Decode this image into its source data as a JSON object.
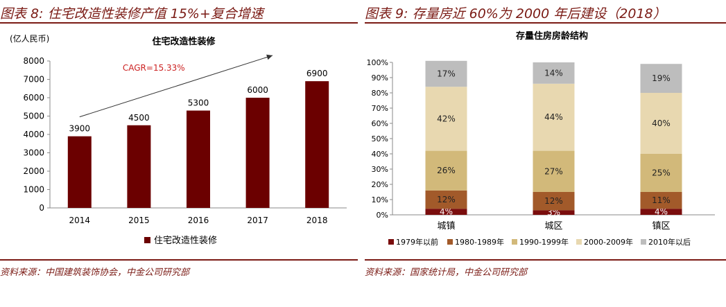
{
  "left_panel": {
    "figure_title": "图表 8: 住宅改造性装修产值 15%+复合增速",
    "source": "资料来源：中国建筑装饰协会，中金公司研究部"
  },
  "right_panel": {
    "figure_title": "图表 9: 存量房近 60%为 2000 年后建设（2018）",
    "source": "资料来源：国家统计局，中金公司研究部"
  },
  "colors": {
    "accent": "#7a1a14",
    "bar": "#6b0000",
    "cagr": "#cc2222",
    "stack": [
      "#7a0d0d",
      "#a25a2a",
      "#d2b97a",
      "#e8d8b0",
      "#bdbdbd"
    ]
  },
  "chart_data": [
    {
      "type": "bar",
      "title": "住宅改造性装修",
      "unit_label": "(亿人民币)",
      "categories": [
        "2014",
        "2015",
        "2016",
        "2017",
        "2018"
      ],
      "series": [
        {
          "name": "住宅改造性装修",
          "values": [
            3900,
            4500,
            5300,
            6000,
            6900
          ]
        }
      ],
      "ylim": [
        0,
        8000
      ],
      "yticks": [
        "0",
        "1000",
        "2000",
        "3000",
        "4000",
        "5000",
        "6000",
        "7000",
        "8000"
      ],
      "annotation": "CAGR=15.33%",
      "grid": false,
      "legend_position": "bottom"
    },
    {
      "type": "bar",
      "stacked": true,
      "title": "存量住房房龄结构",
      "categories": [
        "城镇",
        "城区",
        "镇区"
      ],
      "series": [
        {
          "name": "1979年以前",
          "values": [
            4,
            3,
            4
          ],
          "labels": [
            "4%",
            "3%",
            "4%"
          ]
        },
        {
          "name": "1980-1989年",
          "values": [
            12,
            12,
            11
          ],
          "labels": [
            "12%",
            "12%",
            "11%"
          ]
        },
        {
          "name": "1990-1999年",
          "values": [
            26,
            27,
            25
          ],
          "labels": [
            "26%",
            "27%",
            "25%"
          ]
        },
        {
          "name": "2000-2009年",
          "values": [
            42,
            44,
            40
          ],
          "labels": [
            "42%",
            "44%",
            "40%"
          ]
        },
        {
          "name": "2010年以后",
          "values": [
            17,
            14,
            19
          ],
          "labels": [
            "17%",
            "14%",
            "19%"
          ]
        }
      ],
      "ylim": [
        0,
        100
      ],
      "yticks": [
        "0%",
        "10%",
        "20%",
        "30%",
        "40%",
        "50%",
        "60%",
        "70%",
        "80%",
        "90%",
        "100%"
      ],
      "grid": false,
      "legend_position": "bottom"
    }
  ]
}
